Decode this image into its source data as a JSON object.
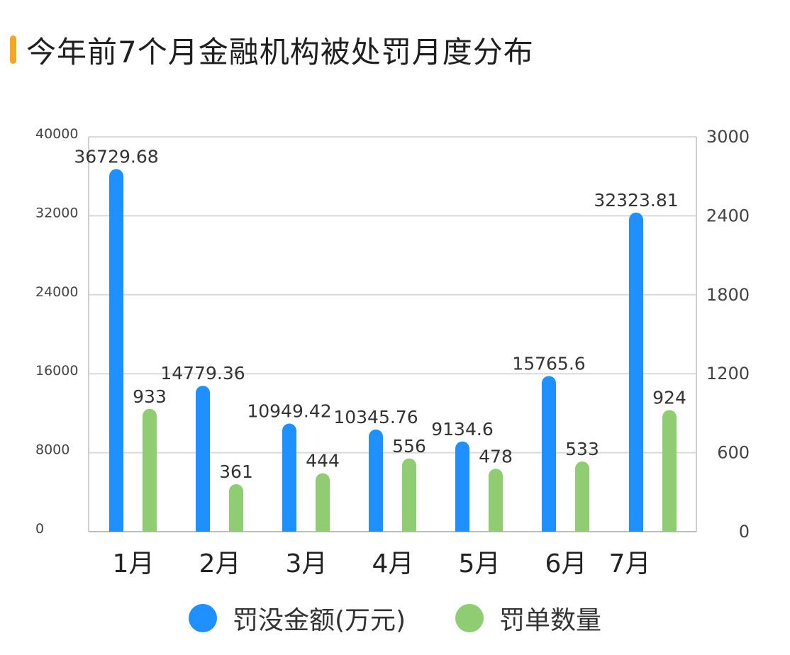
{
  "title": "今年前7个月金融机构被处罚月度分布",
  "colors": {
    "accent": "#f5a623",
    "series_amount": "#1e90ff",
    "series_count": "#8fcc72"
  },
  "chart_data": {
    "type": "bar",
    "categories": [
      "1月",
      "2月",
      "3月",
      "4月",
      "5月",
      "6月",
      "7月"
    ],
    "series": [
      {
        "name": "罚没金额(万元)",
        "axis": "left",
        "values": [
          36729.68,
          14779.36,
          10949.42,
          10345.76,
          9134.6,
          15765.6,
          32323.81
        ],
        "labels": [
          "36729.68",
          "14779.36",
          "10949.42",
          "10345.76",
          "9134.6",
          "15765.6",
          "32323.81"
        ]
      },
      {
        "name": "罚单数量",
        "axis": "right",
        "values": [
          933,
          361,
          444,
          556,
          478,
          533,
          924
        ],
        "labels": [
          "933",
          "361",
          "444",
          "556",
          "478",
          "533",
          "924"
        ]
      }
    ],
    "y_left": {
      "ylim": [
        0,
        40000
      ],
      "ticks": [
        "0",
        "8000",
        "16000",
        "24000",
        "32000",
        "40000"
      ]
    },
    "y_right": {
      "ylim": [
        0,
        3000
      ],
      "ticks": [
        "0",
        "600",
        "1200",
        "1800",
        "2400",
        "3000"
      ]
    },
    "grid": true,
    "legend": "bottom"
  }
}
